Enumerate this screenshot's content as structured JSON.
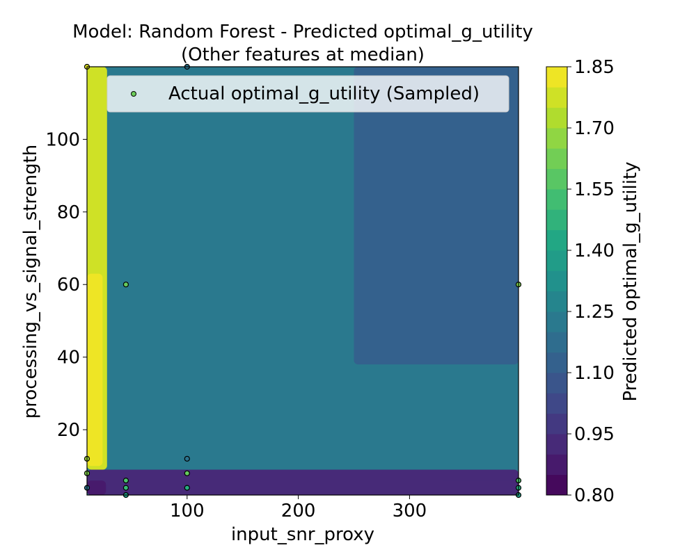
{
  "chart_data": {
    "type": "heatmap",
    "title_line1": "Model: Random Forest - Predicted optimal_g_utility",
    "title_line2": "(Other features at median)",
    "xlabel": "input_snr_proxy",
    "ylabel": "processing_vs_signal_strength",
    "xlim": [
      10,
      398
    ],
    "ylim": [
      2,
      120
    ],
    "x_ticks": [
      100,
      200,
      300
    ],
    "y_ticks": [
      20,
      40,
      60,
      80,
      100
    ],
    "legend": {
      "label": "Actual optimal_g_utility (Sampled)",
      "placement": "top-right"
    },
    "colorbar": {
      "label": "Predicted optimal_g_utility",
      "min": 0.8,
      "max": 1.85,
      "step": 0.05,
      "ticks": [
        0.8,
        0.95,
        1.1,
        1.25,
        1.4,
        1.55,
        1.7,
        1.85
      ],
      "tick_labels": [
        "0.80",
        "0.95",
        "1.10",
        "1.25",
        "1.40",
        "1.55",
        "1.70",
        "1.85"
      ]
    },
    "regions": [
      {
        "x": [
          10,
          398
        ],
        "y": [
          2,
          120
        ],
        "value": 1.2
      },
      {
        "x": [
          250,
          398
        ],
        "y": [
          38,
          120
        ],
        "value": 1.125
      },
      {
        "x": [
          10,
          398
        ],
        "y": [
          2,
          9
        ],
        "value": 0.93
      },
      {
        "x": [
          10,
          398
        ],
        "y": [
          2,
          6
        ],
        "value": 0.9
      },
      {
        "x": [
          10,
          28
        ],
        "y": [
          9,
          120
        ],
        "value": 1.78
      },
      {
        "x": [
          10,
          24
        ],
        "y": [
          10,
          63
        ],
        "value": 1.83
      },
      {
        "x": [
          10,
          27
        ],
        "y": [
          2,
          6
        ],
        "value": 0.85
      }
    ],
    "sampled_points": [
      {
        "x": 10,
        "y": 120,
        "value": 1.8
      },
      {
        "x": 100,
        "y": 120,
        "value": 1.2
      },
      {
        "x": 45,
        "y": 60,
        "value": 1.6
      },
      {
        "x": 398,
        "y": 60,
        "value": 1.65
      },
      {
        "x": 10,
        "y": 12,
        "value": 1.7
      },
      {
        "x": 100,
        "y": 12,
        "value": 1.2
      },
      {
        "x": 10,
        "y": 8,
        "value": 1.65
      },
      {
        "x": 100,
        "y": 8,
        "value": 1.6
      },
      {
        "x": 45,
        "y": 6,
        "value": 1.55
      },
      {
        "x": 398,
        "y": 6,
        "value": 1.55
      },
      {
        "x": 10,
        "y": 4,
        "value": 1.2
      },
      {
        "x": 45,
        "y": 4,
        "value": 1.5
      },
      {
        "x": 100,
        "y": 4,
        "value": 1.45
      },
      {
        "x": 398,
        "y": 4,
        "value": 1.45
      },
      {
        "x": 45,
        "y": 2,
        "value": 1.4
      },
      {
        "x": 398,
        "y": 2,
        "value": 1.4
      }
    ]
  }
}
